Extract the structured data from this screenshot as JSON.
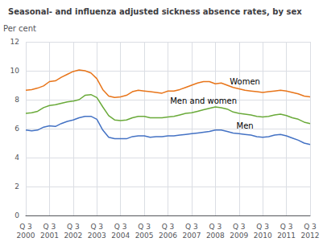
{
  "chart_data": {
    "type": "line",
    "title": "Seasonal- and influenza adjusted sickness absence rates, by sex",
    "y_label": "Per cent",
    "categories": [
      "Q 3\n2000",
      null,
      null,
      null,
      "Q 3\n2001",
      null,
      null,
      null,
      "Q 3\n2002",
      null,
      null,
      null,
      "Q 3\n2003",
      null,
      null,
      null,
      "Q 3\n2004",
      null,
      null,
      null,
      "Q 3\n2005",
      null,
      null,
      null,
      "Q 3\n2006",
      null,
      null,
      null,
      "Q 3\n2007",
      null,
      null,
      null,
      "Q 3\n2008",
      null,
      null,
      null,
      "Q 3\n2009",
      null,
      null,
      null,
      "Q 3\n2010",
      null,
      null,
      null,
      "Q 3\n2011",
      null,
      null,
      null,
      "Q 3\n2012"
    ],
    "series": [
      {
        "name": "Women",
        "color": "#E8751A",
        "values": [
          8.65,
          8.7,
          8.8,
          8.95,
          9.25,
          9.3,
          9.55,
          9.75,
          9.95,
          10.05,
          10.0,
          9.85,
          9.45,
          8.7,
          8.25,
          8.15,
          8.2,
          8.3,
          8.55,
          8.65,
          8.6,
          8.55,
          8.5,
          8.45,
          8.6,
          8.6,
          8.7,
          8.85,
          9.0,
          9.15,
          9.25,
          9.25,
          9.1,
          9.15,
          9.0,
          8.85,
          8.75,
          8.65,
          8.6,
          8.55,
          8.5,
          8.55,
          8.6,
          8.65,
          8.6,
          8.5,
          8.4,
          8.25,
          8.2
        ]
      },
      {
        "name": "Men and women",
        "color": "#6aaa3a",
        "values": [
          7.05,
          7.1,
          7.2,
          7.45,
          7.6,
          7.65,
          7.75,
          7.85,
          7.9,
          8.0,
          8.3,
          8.35,
          8.15,
          7.5,
          6.9,
          6.6,
          6.55,
          6.6,
          6.75,
          6.85,
          6.85,
          6.75,
          6.75,
          6.75,
          6.8,
          6.85,
          6.95,
          7.05,
          7.1,
          7.2,
          7.3,
          7.4,
          7.5,
          7.45,
          7.35,
          7.15,
          7.05,
          7.0,
          6.95,
          6.85,
          6.8,
          6.85,
          6.95,
          7.0,
          6.9,
          6.75,
          6.65,
          6.45,
          6.35
        ]
      },
      {
        "name": "Men",
        "color": "#4472c4",
        "values": [
          5.9,
          5.85,
          5.9,
          6.1,
          6.2,
          6.15,
          6.35,
          6.5,
          6.6,
          6.75,
          6.85,
          6.85,
          6.65,
          5.9,
          5.4,
          5.3,
          5.3,
          5.3,
          5.45,
          5.5,
          5.5,
          5.4,
          5.45,
          5.45,
          5.5,
          5.5,
          5.55,
          5.6,
          5.65,
          5.7,
          5.75,
          5.8,
          5.9,
          5.9,
          5.8,
          5.7,
          5.65,
          5.6,
          5.55,
          5.45,
          5.4,
          5.45,
          5.55,
          5.6,
          5.5,
          5.35,
          5.2,
          5.0,
          4.9
        ]
      }
    ],
    "ylim": [
      0,
      12
    ],
    "yticks": [
      0,
      2,
      4,
      6,
      8,
      10,
      12
    ],
    "grid": true
  }
}
